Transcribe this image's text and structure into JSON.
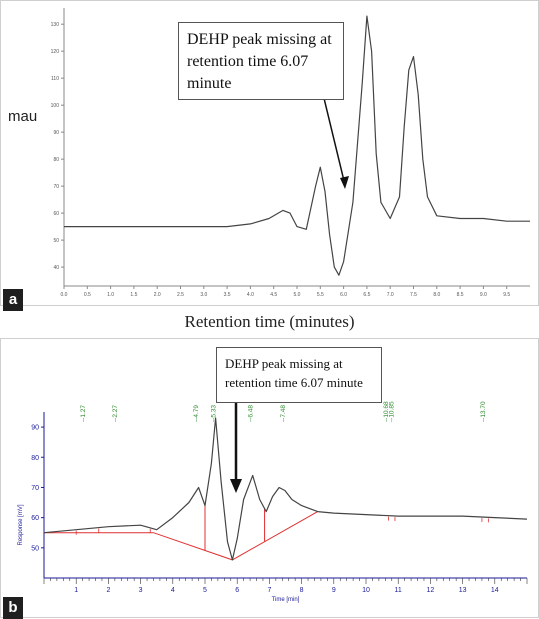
{
  "chart_data": [
    {
      "type": "line",
      "panel": "a",
      "xlabel": "Retention time (minutes)",
      "ylabel": "mau",
      "xlim": [
        0,
        10
      ],
      "ylim": [
        33,
        136
      ],
      "xticks": [
        "0.0",
        "0.5",
        "1.0",
        "1.5",
        "2.0",
        "2.5",
        "3.0",
        "3.5",
        "4.0",
        "4.5",
        "5.0",
        "5.5",
        "6.0",
        "6.5",
        "7.0",
        "7.5",
        "8.0",
        "8.5",
        "9.0",
        "9.5"
      ],
      "yticks": [
        "40",
        "50",
        "60",
        "70",
        "80",
        "90",
        "100",
        "110",
        "120",
        "130"
      ],
      "annotation": {
        "text_line1": "DEHP peak missing at",
        "text_line2": "retention time 6.07",
        "text_line3": "minute",
        "x": 6.07
      },
      "series": [
        {
          "x": [
            0.0,
            2.0,
            3.0,
            3.5,
            4.0,
            4.4,
            4.7,
            4.85,
            5.0,
            5.2,
            5.4,
            5.5,
            5.6,
            5.7,
            5.8,
            5.9,
            6.0,
            6.2,
            6.4,
            6.5,
            6.6,
            6.7,
            6.8,
            7.0,
            7.2,
            7.3,
            7.4,
            7.5,
            7.6,
            7.7,
            7.8,
            8.0,
            8.5,
            9.0,
            9.5,
            10.0
          ],
          "y": [
            55,
            55,
            55,
            55,
            56,
            58,
            61,
            60,
            55,
            54,
            70,
            77,
            68,
            52,
            40,
            37,
            42,
            64,
            108,
            133,
            120,
            82,
            64,
            58,
            66,
            92,
            113,
            118,
            104,
            80,
            66,
            59,
            58,
            58,
            57,
            57
          ]
        }
      ]
    },
    {
      "type": "line",
      "panel": "b",
      "xlabel": "Time [min]",
      "ylabel": "Response [mV]",
      "xlim": [
        0,
        15
      ],
      "ylim": [
        40,
        95
      ],
      "xticks": [
        "1",
        "2",
        "3",
        "4",
        "5",
        "6",
        "7",
        "8",
        "9",
        "10",
        "11",
        "12",
        "13",
        "14"
      ],
      "yticks": [
        "50",
        "60",
        "70",
        "80",
        "90"
      ],
      "annotation": {
        "text_line1": "DEHP peak missing at",
        "text_line2": "retention time 6.07 minute",
        "x": 6.07
      },
      "peak_labels": [
        {
          "x": 1.27,
          "label": "--1.27"
        },
        {
          "x": 2.27,
          "label": "--2.27"
        },
        {
          "x": 4.79,
          "label": "--4.79"
        },
        {
          "x": 5.33,
          "label": "--5.33"
        },
        {
          "x": 6.48,
          "label": "--6.48"
        },
        {
          "x": 7.48,
          "label": "--7.48"
        },
        {
          "x": 10.68,
          "label": "--10.68"
        },
        {
          "x": 10.85,
          "label": "--10.85"
        },
        {
          "x": 13.7,
          "label": "--13.70"
        }
      ],
      "series": [
        {
          "x": [
            0.0,
            1.0,
            2.0,
            3.0,
            3.5,
            4.0,
            4.5,
            4.8,
            5.0,
            5.2,
            5.33,
            5.5,
            5.7,
            5.85,
            6.0,
            6.2,
            6.48,
            6.7,
            6.9,
            7.1,
            7.3,
            7.48,
            7.7,
            8.0,
            8.5,
            9.0,
            10.0,
            11.0,
            12.0,
            13.0,
            14.0,
            15.0
          ],
          "y": [
            55,
            56,
            57,
            57.5,
            56,
            60,
            65,
            70,
            64,
            78,
            93,
            72,
            52,
            46,
            53,
            66,
            74,
            66,
            62,
            67,
            70,
            69,
            66,
            64,
            62,
            61.5,
            61,
            60.5,
            60.5,
            60.5,
            60,
            59.5
          ]
        },
        {
          "name": "baseline",
          "x": [
            0.0,
            3.4,
            5.85,
            8.5
          ],
          "y": [
            55,
            55,
            46,
            62
          ]
        }
      ]
    }
  ],
  "panels": {
    "a": "a",
    "b": "b"
  },
  "colors": {
    "trace": "#444444",
    "baseline": "#e03030",
    "peak_label": "#2e8b2e",
    "axis_b": "#1a1a9a"
  }
}
